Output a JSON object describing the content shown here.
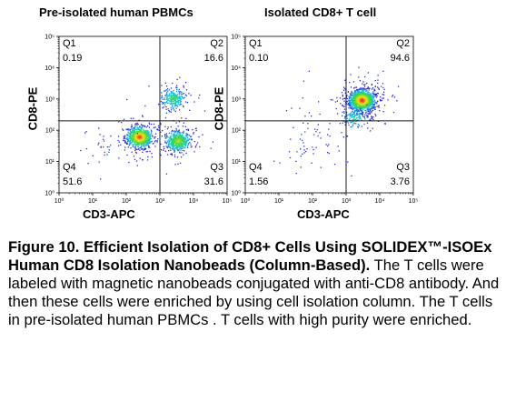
{
  "chart_data": [
    {
      "type": "scatter",
      "title": "Pre-isolated human PBMCs",
      "xlabel": "CD3-APC",
      "ylabel": "CD8-PE",
      "xscale": "log",
      "yscale": "log",
      "xlim": [
        1,
        100000
      ],
      "ylim": [
        1,
        100000
      ],
      "x_ticks": [
        "10⁰",
        "10¹",
        "10²",
        "10³",
        "10⁴",
        "10⁵"
      ],
      "y_ticks": [
        "10⁰",
        "10¹",
        "10²",
        "10³",
        "10⁴",
        "10⁵"
      ],
      "gate": {
        "x": 1000,
        "y": 200
      },
      "quadrants": [
        {
          "label": "Q1",
          "value": "0.19",
          "position": "top-left"
        },
        {
          "label": "Q2",
          "value": "16.6",
          "position": "top-right"
        },
        {
          "label": "Q3",
          "value": "31.6",
          "position": "bottom-right"
        },
        {
          "label": "Q4",
          "value": "51.6",
          "position": "bottom-left"
        }
      ],
      "populations": [
        {
          "x": 250,
          "y": 60,
          "share": 0.52
        },
        {
          "x": 3500,
          "y": 45,
          "share": 0.3
        },
        {
          "x": 2500,
          "y": 1000,
          "share": 0.16
        },
        {
          "x": 30,
          "y": 30,
          "share": 0.02
        }
      ]
    },
    {
      "type": "scatter",
      "title": "Isolated CD8+ T cell",
      "xlabel": "CD3-APC",
      "ylabel": "CD8-PE",
      "xscale": "log",
      "yscale": "log",
      "xlim": [
        1,
        100000
      ],
      "ylim": [
        1,
        100000
      ],
      "x_ticks": [
        "10⁰",
        "10¹",
        "10²",
        "10³",
        "10⁴",
        "10⁵"
      ],
      "y_ticks": [
        "10⁰",
        "10¹",
        "10²",
        "10³",
        "10⁴",
        "10⁵"
      ],
      "gate": {
        "x": 1000,
        "y": 200
      },
      "quadrants": [
        {
          "label": "Q1",
          "value": "0.10",
          "position": "top-left"
        },
        {
          "label": "Q2",
          "value": "94.6",
          "position": "top-right"
        },
        {
          "label": "Q3",
          "value": "3.76",
          "position": "bottom-right"
        },
        {
          "label": "Q4",
          "value": "1.56",
          "position": "bottom-left"
        }
      ],
      "populations": [
        {
          "x": 3000,
          "y": 900,
          "share": 0.88
        },
        {
          "x": 1800,
          "y": 250,
          "share": 0.08
        },
        {
          "x": 80,
          "y": 60,
          "share": 0.04
        }
      ]
    }
  ],
  "caption": {
    "bold": "Figure 10. Efficient Isolation of CD8+ Cells Using SOLIDEX™-ISOEx Human CD8 Isolation Nanobeads (Column-Based).",
    "text": "The T cells were labeled with magnetic nanobeads conjugated with anti-CD8 antibody. And then these cells were enriched by using cell isolation column. The T cells in pre-isolated human PBMCs . T cells with high purity were enriched."
  },
  "colors": {
    "density_low": "#2a2ad6",
    "density_mid": "#11c2e0",
    "density_mid2": "#3fd83a",
    "density_high": "#f4e21a",
    "density_peak": "#e8221a",
    "gate_line": "#1a1a1a",
    "axis": "#000000"
  }
}
